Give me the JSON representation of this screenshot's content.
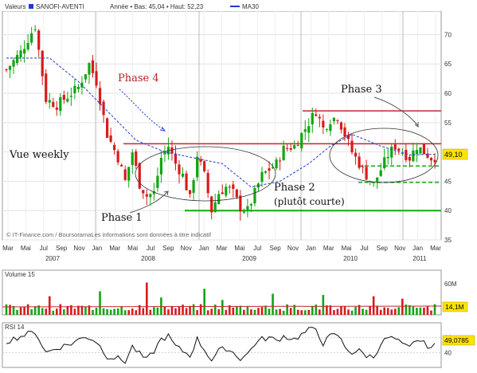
{
  "chart_data": [
    {
      "type": "candlestick",
      "header": {
        "valeurs_label": "Valeurs",
        "name": "SANOFI-AVENTI",
        "stats": "Année • Bas: 45,04 • Haut: 52,23",
        "ma_label": "MA30"
      },
      "colors": {
        "up": "#11a611",
        "down": "#d81b1b",
        "ma": "#1f3bd6",
        "resistance": "#c0282d",
        "support": "#13a913",
        "last_price_box": "#ffe300"
      },
      "ylim": [
        35,
        74
      ],
      "y_ticks": [
        35,
        40,
        45,
        50,
        55,
        60,
        65,
        70
      ],
      "last_price_label": "49,10",
      "watermark": "© IT-Finance.com / BoursoramaLes informations sont données à titre indicatif",
      "x_labels": [
        "Mar",
        "Mai",
        "Jul",
        "Sep",
        "Nov",
        "Jan",
        "Mar",
        "Mai",
        "Jul",
        "Sep",
        "Nov",
        "Jan",
        "Mar",
        "Mai",
        "Jul",
        "Sep",
        "Nov",
        "Jan",
        "Mar",
        "Mai",
        "Jul",
        "Sep",
        "Nov",
        "Jan",
        "Mar"
      ],
      "year_labels": [
        "2007",
        "2008",
        "2009",
        "2010",
        "2011"
      ],
      "annotations": {
        "phase4": "Phase 4",
        "vue": "Vue weekly",
        "phase1": "Phase 1",
        "phase2_line1": "Phase 2",
        "phase2_line2": "(plutôt courte)",
        "phase3": "Phase 3"
      },
      "levels": {
        "resistance_high": 57.0,
        "resistance_mid": 51.4,
        "support_low": 40.0,
        "dash_upper": 47.6,
        "dash_lower": 44.8
      },
      "close_keypoints": [
        [
          0,
          64
        ],
        [
          4,
          67
        ],
        [
          8,
          71.5
        ],
        [
          11,
          59
        ],
        [
          14,
          58
        ],
        [
          17,
          59.5
        ],
        [
          20,
          61
        ],
        [
          23,
          65
        ],
        [
          25,
          62
        ],
        [
          28,
          53
        ],
        [
          31,
          49
        ],
        [
          33,
          45
        ],
        [
          35,
          50
        ],
        [
          37,
          44.5
        ],
        [
          39,
          42.5
        ],
        [
          41,
          43
        ],
        [
          43,
          49
        ],
        [
          45,
          51
        ],
        [
          47,
          48
        ],
        [
          49,
          46
        ],
        [
          51,
          42
        ],
        [
          53,
          49.5
        ],
        [
          55,
          46
        ],
        [
          57,
          40
        ],
        [
          59,
          43
        ],
        [
          61,
          44
        ],
        [
          63,
          43
        ],
        [
          65,
          40.5
        ],
        [
          67,
          40
        ],
        [
          69,
          43
        ],
        [
          71,
          46
        ],
        [
          73,
          47
        ],
        [
          75,
          48
        ],
        [
          77,
          50.5
        ],
        [
          80,
          51
        ],
        [
          82,
          53
        ],
        [
          84,
          55
        ],
        [
          86,
          57
        ],
        [
          88,
          54
        ],
        [
          90,
          55.5
        ],
        [
          92,
          56
        ],
        [
          94,
          53
        ],
        [
          96,
          50
        ],
        [
          98,
          48
        ],
        [
          100,
          46
        ],
        [
          102,
          44.5
        ],
        [
          104,
          47
        ],
        [
          106,
          49.5
        ],
        [
          108,
          51
        ],
        [
          110,
          50
        ],
        [
          112,
          49
        ],
        [
          114,
          51
        ],
        [
          116,
          50
        ],
        [
          118,
          49
        ],
        [
          119,
          49.1
        ]
      ],
      "ma_keypoints": [
        [
          0,
          66
        ],
        [
          12,
          66
        ],
        [
          20,
          62
        ],
        [
          28,
          57
        ],
        [
          36,
          52
        ],
        [
          44,
          50
        ],
        [
          52,
          49
        ],
        [
          60,
          48
        ],
        [
          68,
          44
        ],
        [
          76,
          45
        ],
        [
          84,
          48
        ],
        [
          90,
          51
        ],
        [
          96,
          53
        ],
        [
          104,
          51
        ],
        [
          112,
          49.5
        ],
        [
          119,
          49.6
        ]
      ]
    },
    {
      "type": "bar",
      "label": "Volume 15",
      "y_tick_label": "60M",
      "last_value_label": "14,1M",
      "max_value_m": 72,
      "spikes": [
        [
          12,
          30
        ],
        [
          26,
          38
        ],
        [
          39,
          52
        ],
        [
          43,
          28
        ],
        [
          55,
          42
        ],
        [
          60,
          24
        ],
        [
          74,
          34
        ],
        [
          88,
          32
        ],
        [
          102,
          30
        ],
        [
          110,
          26
        ]
      ],
      "base_value_m": 12
    },
    {
      "type": "line",
      "label": "RSI 14",
      "y_ticks": [
        40,
        60
      ],
      "last_value_label": "49,0785",
      "ylim": [
        20,
        80
      ],
      "keypoints": [
        [
          0,
          55
        ],
        [
          4,
          62
        ],
        [
          8,
          68
        ],
        [
          11,
          40
        ],
        [
          14,
          46
        ],
        [
          18,
          52
        ],
        [
          22,
          62
        ],
        [
          25,
          55
        ],
        [
          28,
          35
        ],
        [
          31,
          32
        ],
        [
          33,
          28
        ],
        [
          35,
          48
        ],
        [
          37,
          38
        ],
        [
          39,
          30
        ],
        [
          41,
          42
        ],
        [
          43,
          58
        ],
        [
          45,
          62
        ],
        [
          47,
          48
        ],
        [
          49,
          42
        ],
        [
          51,
          36
        ],
        [
          53,
          58
        ],
        [
          55,
          44
        ],
        [
          57,
          30
        ],
        [
          59,
          42
        ],
        [
          61,
          46
        ],
        [
          63,
          40
        ],
        [
          65,
          32
        ],
        [
          67,
          38
        ],
        [
          69,
          52
        ],
        [
          71,
          58
        ],
        [
          73,
          60
        ],
        [
          75,
          56
        ],
        [
          77,
          62
        ],
        [
          80,
          58
        ],
        [
          82,
          64
        ],
        [
          84,
          70
        ],
        [
          86,
          72
        ],
        [
          88,
          52
        ],
        [
          90,
          62
        ],
        [
          92,
          64
        ],
        [
          94,
          48
        ],
        [
          96,
          40
        ],
        [
          98,
          42
        ],
        [
          100,
          36
        ],
        [
          102,
          34
        ],
        [
          104,
          52
        ],
        [
          106,
          60
        ],
        [
          108,
          58
        ],
        [
          110,
          50
        ],
        [
          112,
          46
        ],
        [
          114,
          58
        ],
        [
          116,
          52
        ],
        [
          118,
          47
        ],
        [
          119,
          49
        ]
      ]
    }
  ]
}
